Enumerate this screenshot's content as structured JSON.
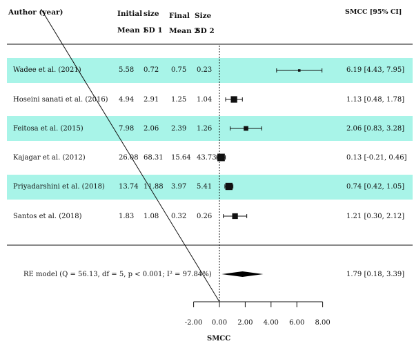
{
  "header": {
    "author": "Author (year)",
    "initial": "Initial",
    "size1": "size",
    "mean1": "Mean 1",
    "sd1": "SD 1",
    "final": "Final",
    "size2": "Size",
    "mean2": "Mean 2",
    "sd2": "SD 2",
    "effect": "SMCC [95% CI]"
  },
  "colors": {
    "band": "#a8f4e8",
    "ink": "#111111",
    "diamond": "#000000"
  },
  "rows": [
    {
      "study": "Wadee et al. (2021)",
      "mean1": "5.58",
      "sd1": "0.72",
      "mean2": "0.75",
      "sd2": "0.23",
      "ci_text": "6.19 [4.43, 7.95]",
      "highlight": true
    },
    {
      "study": "Hoseini sanati et al. (2016)",
      "mean1": "4.94",
      "sd1": "2.91",
      "mean2": "1.25",
      "sd2": "1.04",
      "ci_text": "1.13 [0.48, 1.78]",
      "highlight": false
    },
    {
      "study": "Feitosa et al. (2015)",
      "mean1": "7.98",
      "sd1": "2.06",
      "mean2": "2.39",
      "sd2": "1.26",
      "ci_text": "2.06 [0.83, 3.28]",
      "highlight": true
    },
    {
      "study": "Kajagar et al. (2012)",
      "mean1": "26.08",
      "sd1": "68.31",
      "mean2": "15.64",
      "sd2": "43.73",
      "ci_text": "0.13 [-0.21, 0.46]",
      "highlight": false
    },
    {
      "study": "Priyadarshini et al. (2018)",
      "mean1": "13.74",
      "sd1": "11.88",
      "mean2": "3.97",
      "sd2": "5.41",
      "ci_text": "0.74 [0.42, 1.05]",
      "highlight": true
    },
    {
      "study": "Santos et al. (2018)",
      "mean1": "1.83",
      "sd1": "1.08",
      "mean2": "0.32",
      "sd2": "0.26",
      "ci_text": "1.21 [0.30, 2.12]",
      "highlight": false
    }
  ],
  "summary": {
    "label": "RE model (Q = 56.13, df = 5, p < 0.001; I² = 97.84%)",
    "ci_text": "1.79 [0.18, 3.39]"
  },
  "chart_data": {
    "type": "forest",
    "xlabel": "SMCC",
    "xticks": [
      -2,
      0,
      2,
      4,
      6,
      8
    ],
    "xtick_labels": [
      "-2.00",
      "0.00",
      "2.00",
      "4.00",
      "6.00",
      "8.00"
    ],
    "reference_line": 0,
    "studies": [
      {
        "label": "Wadee et al. (2021)",
        "estimate": 6.19,
        "lower": 4.43,
        "upper": 7.95,
        "weight": 0.3
      },
      {
        "label": "Hoseini sanati et al. (2016)",
        "estimate": 1.13,
        "lower": 0.48,
        "upper": 1.78,
        "weight": 1.4
      },
      {
        "label": "Feitosa et al. (2015)",
        "estimate": 2.06,
        "lower": 0.83,
        "upper": 3.28,
        "weight": 0.9
      },
      {
        "label": "Kajagar et al. (2012)",
        "estimate": 0.13,
        "lower": -0.21,
        "upper": 0.46,
        "weight": 1.7
      },
      {
        "label": "Priyadarshini et al. (2018)",
        "estimate": 0.74,
        "lower": 0.42,
        "upper": 1.05,
        "weight": 1.6
      },
      {
        "label": "Santos et al. (2018)",
        "estimate": 1.21,
        "lower": 0.3,
        "upper": 2.12,
        "weight": 1.2
      }
    ],
    "summary": {
      "label": "RE model",
      "estimate": 1.79,
      "lower": 0.18,
      "upper": 3.39
    }
  }
}
